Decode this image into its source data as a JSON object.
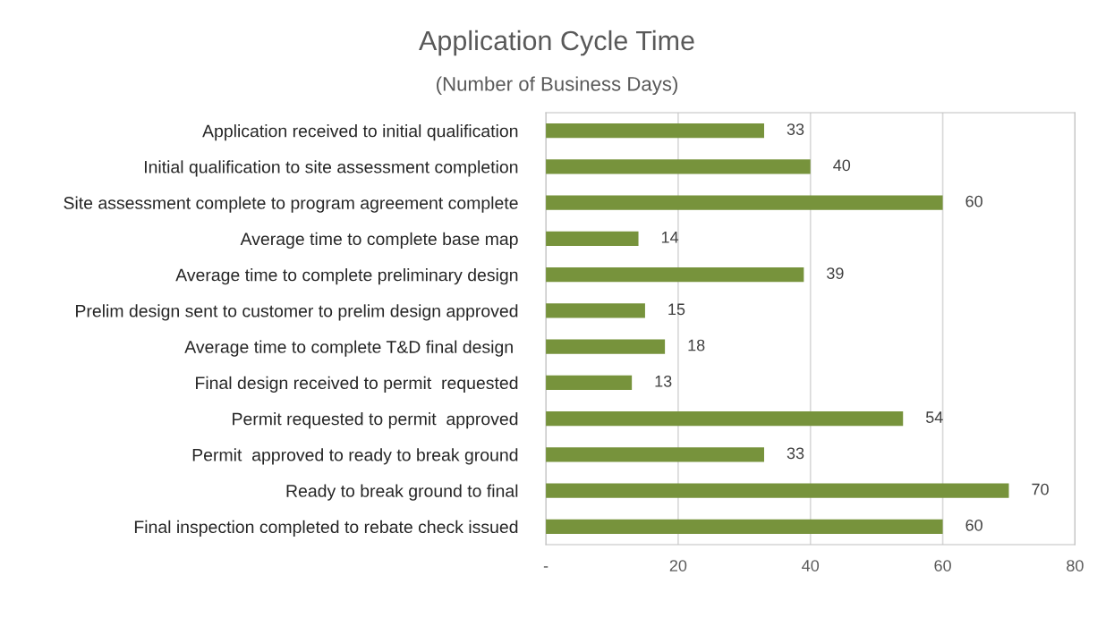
{
  "chart_data": {
    "type": "bar",
    "orientation": "horizontal",
    "title": "Application Cycle Time",
    "subtitle": "(Number of Business Days)",
    "categories": [
      "Application received to initial qualification",
      "Initial qualification to site assessment completion",
      "Site assessment complete to program agreement complete",
      "Average time to complete base map",
      "Average time to complete preliminary design",
      "Prelim design sent to customer to prelim design approved",
      "Average time to complete T&D final design ",
      "Final design received to permit  requested",
      "Permit requested to permit  approved",
      "Permit  approved to ready to break ground",
      "Ready to break ground to final",
      "Final inspection completed to rebate check issued"
    ],
    "values": [
      33,
      40,
      60,
      14,
      39,
      15,
      18,
      13,
      54,
      33,
      70,
      60
    ],
    "color": "#77933c",
    "data_labels": true,
    "xlim": [
      0,
      80
    ],
    "xticks": [
      {
        "value": 0,
        "label": "-"
      },
      20,
      40,
      60,
      80
    ],
    "grid": "x"
  }
}
